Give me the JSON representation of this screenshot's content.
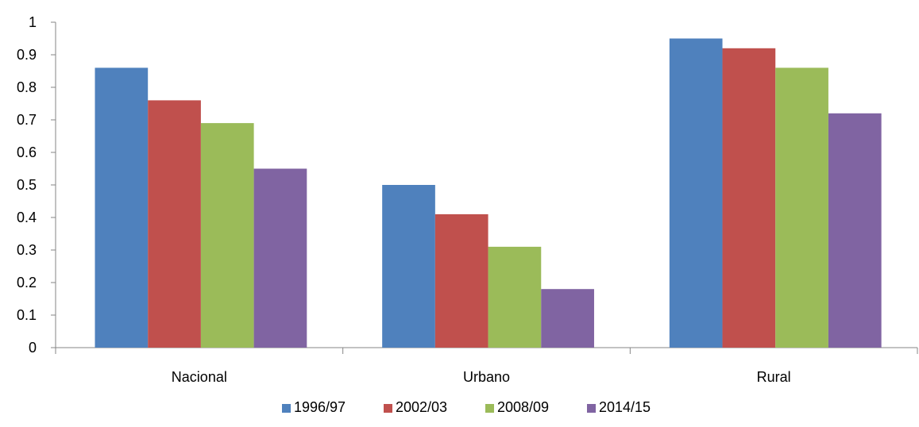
{
  "chart_data": {
    "type": "bar",
    "categories": [
      "Nacional",
      "Urbano",
      "Rural"
    ],
    "series": [
      {
        "name": "1996/97",
        "values": [
          0.86,
          0.5,
          0.95
        ],
        "color": "#4F81BD"
      },
      {
        "name": "2002/03",
        "values": [
          0.76,
          0.41,
          0.92
        ],
        "color": "#C0504D"
      },
      {
        "name": "2008/09",
        "values": [
          0.69,
          0.31,
          0.86
        ],
        "color": "#9BBB59"
      },
      {
        "name": "2014/15",
        "values": [
          0.55,
          0.18,
          0.72
        ],
        "color": "#8064A2"
      }
    ],
    "yticks": [
      "0",
      "0.1",
      "0.2",
      "0.3",
      "0.4",
      "0.5",
      "0.6",
      "0.7",
      "0.8",
      "0.9",
      "1"
    ],
    "ylim": [
      0,
      1
    ],
    "grid": false,
    "legend_position": "bottom"
  }
}
